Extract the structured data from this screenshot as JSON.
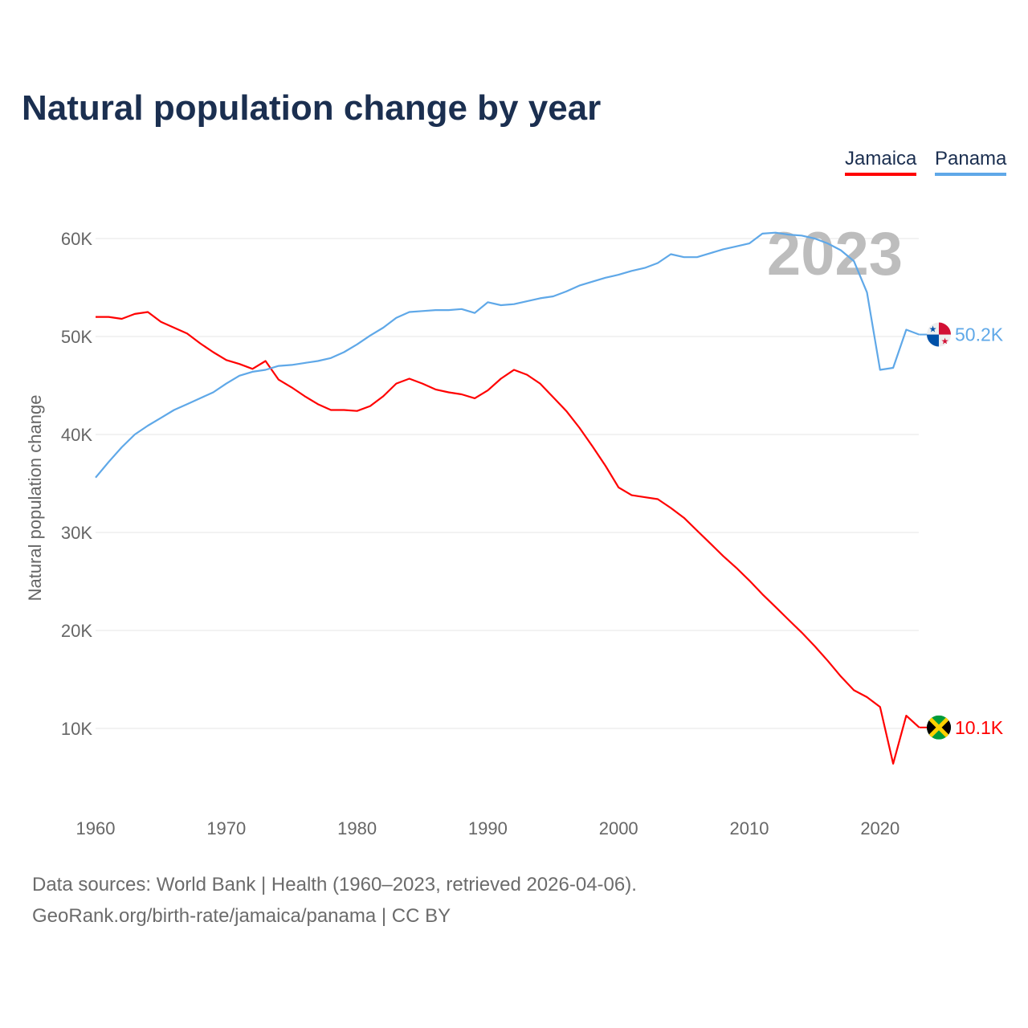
{
  "title": "Natural population change by year",
  "footer": {
    "source": "Data sources: World Bank | Health (1960–2023, retrieved 2026-04-06).",
    "credit": "GeoRank.org/birth-rate/jamaica/panama | CC BY"
  },
  "chart_data": {
    "type": "line",
    "title": "Natural population change by year",
    "xlabel": "",
    "ylabel": "Natural population change",
    "xlim": [
      1960,
      2023
    ],
    "ylim": [
      3000,
      66000
    ],
    "x_ticks": [
      "1960",
      "1970",
      "1980",
      "1990",
      "2000",
      "2010",
      "2020"
    ],
    "y_ticks": [
      {
        "value": 10000,
        "label": "10K"
      },
      {
        "value": 20000,
        "label": "20K"
      },
      {
        "value": 30000,
        "label": "30K"
      },
      {
        "value": 40000,
        "label": "40K"
      },
      {
        "value": 50000,
        "label": "50K"
      },
      {
        "value": 60000,
        "label": "60K"
      }
    ],
    "grid": true,
    "legend_position": "top-right",
    "year_annotation": "2023",
    "x": [
      1960,
      1961,
      1962,
      1963,
      1964,
      1965,
      1966,
      1967,
      1968,
      1969,
      1970,
      1971,
      1972,
      1973,
      1974,
      1975,
      1976,
      1977,
      1978,
      1979,
      1980,
      1981,
      1982,
      1983,
      1984,
      1985,
      1986,
      1987,
      1988,
      1989,
      1990,
      1991,
      1992,
      1993,
      1994,
      1995,
      1996,
      1997,
      1998,
      1999,
      2000,
      2001,
      2002,
      2003,
      2004,
      2005,
      2006,
      2007,
      2008,
      2009,
      2010,
      2011,
      2012,
      2013,
      2014,
      2015,
      2016,
      2017,
      2018,
      2019,
      2020,
      2021,
      2022,
      2023
    ],
    "series": [
      {
        "name": "Jamaica",
        "color": "#ff0000",
        "end_label": "10.1K",
        "flag": "jamaica-flag",
        "values": [
          52000,
          52000,
          51800,
          52300,
          52500,
          51500,
          50900,
          50300,
          49300,
          48400,
          47600,
          47200,
          46700,
          47500,
          45600,
          44800,
          43900,
          43100,
          42500,
          42500,
          42400,
          42900,
          43900,
          45200,
          45700,
          45200,
          44600,
          44300,
          44100,
          43700,
          44500,
          45700,
          46600,
          46100,
          45200,
          43800,
          42400,
          40700,
          38800,
          36800,
          34600,
          33800,
          33600,
          33400,
          32500,
          31500,
          30200,
          28900,
          27600,
          26400,
          25100,
          23700,
          22400,
          21100,
          19800,
          18400,
          16900,
          15300,
          13900,
          13200,
          12200,
          6400,
          11300,
          10100
        ]
      },
      {
        "name": "Panama",
        "color": "#5fa8e8",
        "end_label": "50.2K",
        "flag": "panama-flag",
        "values": [
          35600,
          37200,
          38700,
          40000,
          40900,
          41700,
          42500,
          43100,
          43700,
          44300,
          45200,
          46000,
          46400,
          46600,
          47000,
          47100,
          47300,
          47500,
          47800,
          48400,
          49200,
          50100,
          50900,
          51900,
          52500,
          52600,
          52700,
          52700,
          52800,
          52400,
          53500,
          53200,
          53300,
          53600,
          53900,
          54100,
          54600,
          55200,
          55600,
          56000,
          56300,
          56700,
          57000,
          57500,
          58400,
          58100,
          58100,
          58500,
          58900,
          59200,
          59500,
          60500,
          60600,
          60400,
          60300,
          60000,
          59500,
          58800,
          57700,
          54500,
          46600,
          46800,
          50700,
          50200
        ]
      }
    ]
  }
}
